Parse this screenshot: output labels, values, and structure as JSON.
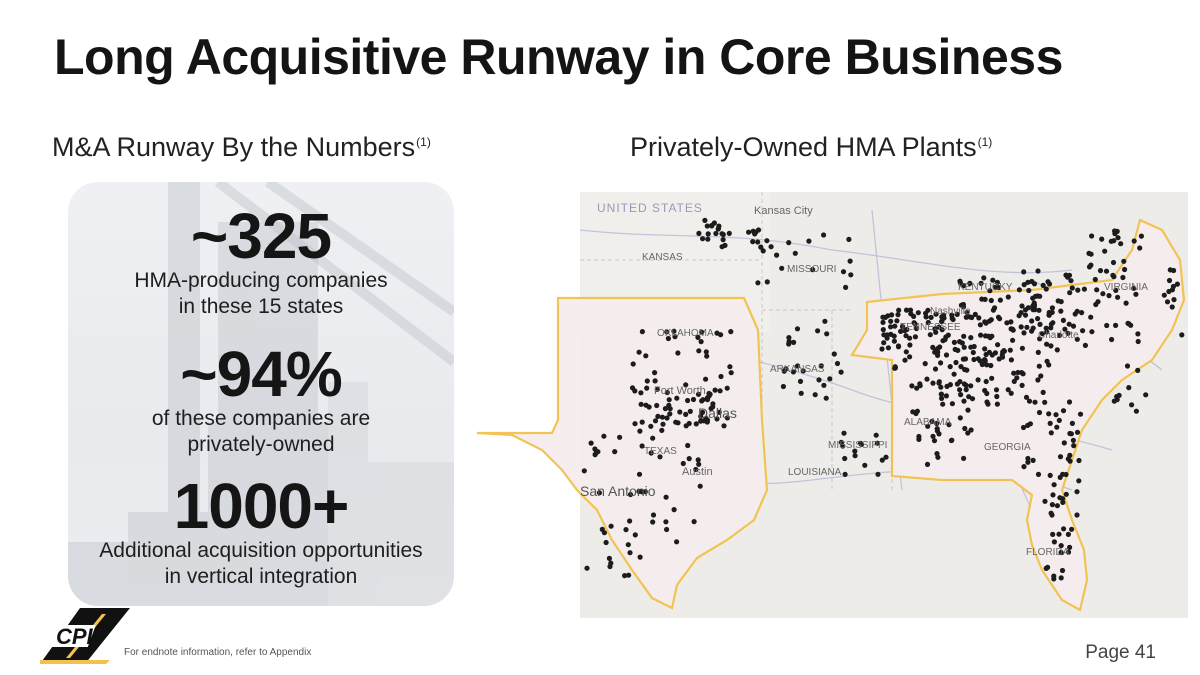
{
  "title": "Long Acquisitive Runway in Core Business",
  "left_heading": {
    "text": "M&A Runway By the Numbers",
    "footnote": "(1)"
  },
  "right_heading": {
    "text": "Privately-Owned HMA Plants",
    "footnote": "(1)"
  },
  "stats": [
    {
      "value": "~325",
      "line1": "HMA-producing companies",
      "line2": "in these 15 states"
    },
    {
      "value": "~94%",
      "line1": "of these companies are",
      "line2": "privately-owned"
    },
    {
      "value": "1000+",
      "line1": "Additional acquisition opportunities",
      "line2": "in vertical integration"
    }
  ],
  "map_labels": {
    "united_states": "UNITED STATES",
    "kansas_city": "Kansas City",
    "kansas": "KANSAS",
    "missouri": "MISSOURI",
    "oklahoma": "OKLAHOMA",
    "arkansas": "ARKANSAS",
    "fort_worth": "Fort Worth",
    "dallas": "Dallas",
    "texas": "TEXAS",
    "austin": "Austin",
    "san_antonio": "San Antonio",
    "louisiana": "LOUISIANA",
    "mississippi": "MISSISSIPPI",
    "alabama": "ALABAMA",
    "georgia": "GEORGIA",
    "florida": "FLORIDA",
    "tennessee": "TENNESSEE",
    "kentucky": "KENTUCKY",
    "virginia": "VIRGINIA",
    "nashville": "Nashville",
    "charlotte": "Charlotte"
  },
  "logo_text": "CPI",
  "endnote": "For endnote information, refer to Appendix",
  "page_number": "Page 41",
  "colors": {
    "state_outline": "#f2c14e",
    "plant_dot": "#1c1c1c",
    "title": "#141414"
  }
}
